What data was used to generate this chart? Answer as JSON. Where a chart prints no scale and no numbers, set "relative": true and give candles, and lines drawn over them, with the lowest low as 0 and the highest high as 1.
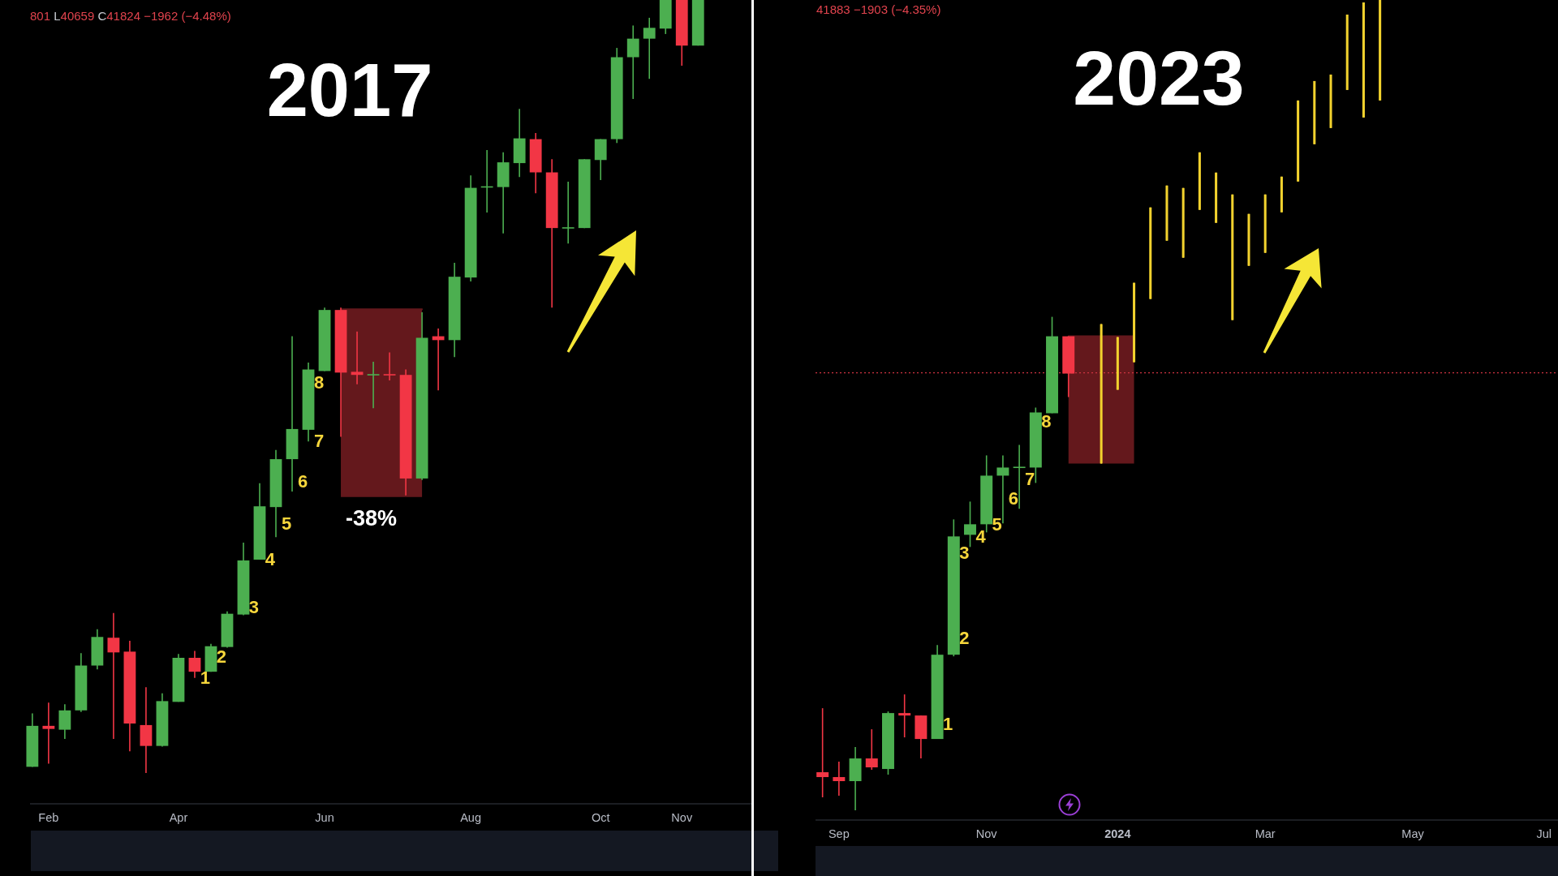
{
  "chart_data": [
    {
      "type": "candlestick",
      "title": "2017",
      "relative": true,
      "xlim": [
        "2017-01-29",
        "2017-12-06"
      ],
      "xticks": [
        {
          "value": "2017-02-06",
          "label": "Feb"
        },
        {
          "value": "2017-04-03",
          "label": "Apr"
        },
        {
          "value": "2017-06-05",
          "label": "Jun"
        },
        {
          "value": "2017-08-07",
          "label": "Aug"
        },
        {
          "value": "2017-10-02",
          "label": "Oct"
        },
        {
          "value": "2017-11-06",
          "label": "Nov"
        }
      ],
      "series": [
        {
          "name": "-38%",
          "type": "line",
          "x": [
            "2017-06-12",
            "2017-07-17"
          ],
          "values": [
            0.6,
            0.6
          ],
          "lower": [
            0.357,
            0.357
          ],
          "upper": [
            0.6,
            0.6
          ],
          "color": "#64181c"
        },
        {
          "x": [
            "2017-01-30",
            "2017-02-06",
            "2017-02-13",
            "2017-02-20",
            "2017-02-27",
            "2017-03-06",
            "2017-03-13",
            "2017-03-20",
            "2017-03-27",
            "2017-04-03",
            "2017-04-10",
            "2017-04-17",
            "2017-04-24",
            "2017-05-01",
            "2017-05-08",
            "2017-05-15",
            "2017-05-22",
            "2017-05-29",
            "2017-06-05",
            "2017-06-12",
            "2017-06-19",
            "2017-06-26",
            "2017-07-03",
            "2017-07-10",
            "2017-07-17",
            "2017-07-24",
            "2017-07-31",
            "2017-08-07",
            "2017-08-14",
            "2017-08-21",
            "2017-08-28",
            "2017-09-04",
            "2017-09-11",
            "2017-09-18",
            "2017-09-25",
            "2017-10-02",
            "2017-10-09",
            "2017-10-16",
            "2017-10-23",
            "2017-10-30",
            "2017-11-06",
            "2017-11-13"
          ],
          "ohlc": [
            [
              0.008,
              0.077,
              0.008,
              0.061
            ],
            [
              0.061,
              0.091,
              0.012,
              0.057
            ],
            [
              0.056,
              0.089,
              0.044,
              0.081
            ],
            [
              0.081,
              0.155,
              0.079,
              0.139
            ],
            [
              0.139,
              0.186,
              0.134,
              0.176
            ],
            [
              0.175,
              0.207,
              0.044,
              0.156
            ],
            [
              0.157,
              0.171,
              0.028,
              0.064
            ],
            [
              0.062,
              0.111,
              0,
              0.035
            ],
            [
              0.035,
              0.103,
              0.034,
              0.093
            ],
            [
              0.092,
              0.154,
              0.092,
              0.149
            ],
            [
              0.149,
              0.158,
              0.123,
              0.131
            ],
            [
              0.131,
              0.167,
              0.131,
              0.164
            ],
            [
              0.163,
              0.209,
              0.162,
              0.206
            ],
            [
              0.205,
              0.298,
              0.204,
              0.275
            ],
            [
              0.276,
              0.375,
              0.276,
              0.345
            ],
            [
              0.344,
              0.418,
              0.305,
              0.406
            ],
            [
              0.406,
              0.565,
              0.364,
              0.445
            ],
            [
              0.444,
              0.531,
              0.429,
              0.522
            ],
            [
              0.52,
              0.602,
              0.52,
              0.599
            ],
            [
              0.599,
              0.602,
              0.435,
              0.518
            ],
            [
              0.519,
              0.571,
              0.503,
              0.515
            ],
            [
              0.515,
              0.532,
              0.472,
              0.516
            ],
            [
              0.516,
              0.544,
              0.508,
              0.515
            ],
            [
              0.515,
              0.522,
              0.359,
              0.381
            ],
            [
              0.381,
              0.596,
              0.379,
              0.563
            ],
            [
              0.565,
              0.575,
              0.495,
              0.56
            ],
            [
              0.56,
              0.66,
              0.538,
              0.642
            ],
            [
              0.641,
              0.773,
              0.636,
              0.757
            ],
            [
              0.758,
              0.806,
              0.725,
              0.759
            ],
            [
              0.758,
              0.803,
              0.698,
              0.79
            ],
            [
              0.789,
              0.859,
              0.771,
              0.821
            ],
            [
              0.82,
              0.828,
              0.75,
              0.777
            ],
            [
              0.777,
              0.794,
              0.602,
              0.705
            ],
            [
              0.705,
              0.765,
              0.685,
              0.706
            ],
            [
              0.705,
              0.794,
              0.705,
              0.794
            ],
            [
              0.793,
              0.82,
              0.767,
              0.82
            ],
            [
              0.82,
              0.938,
              0.815,
              0.926
            ],
            [
              0.926,
              0.967,
              0.872,
              0.95
            ],
            [
              0.95,
              0.977,
              0.898,
              0.964
            ],
            [
              0.963,
              1,
              0.956,
              1
            ],
            [
              1,
              1,
              0.915,
              0.941
            ],
            [
              0.941,
              1,
              0.941,
              1
            ]
          ],
          "colors": [
            "#4caf50",
            "#f23645",
            "#4caf50",
            "#4caf50",
            "#4caf50",
            "#f23645",
            "#f23645",
            "#f23645",
            "#4caf50",
            "#4caf50",
            "#f23645",
            "#4caf50",
            "#4caf50",
            "#4caf50",
            "#4caf50",
            "#4caf50",
            "#4caf50",
            "#4caf50",
            "#4caf50",
            "#f23645",
            "#f23645",
            "#4caf50",
            "#f23645",
            "#f23645",
            "#4caf50",
            "#f23645",
            "#4caf50",
            "#4caf50",
            "#4caf50",
            "#4caf50",
            "#4caf50",
            "#f23645",
            "#f23645",
            "#4caf50",
            "#4caf50",
            "#4caf50",
            "#4caf50",
            "#4caf50",
            "#4caf50",
            "#4caf50",
            "#f23645",
            "#4caf50"
          ]
        }
      ],
      "annotations": [
        "801 L40659 C41824 −1962 (−4.48%)",
        {
          "text": "1",
          "x": "2017-04-10",
          "y": 0.123
        },
        {
          "text": "2",
          "x": "2017-04-17",
          "y": 0.151
        },
        {
          "text": "3",
          "x": "2017-05-01",
          "y": 0.215
        },
        {
          "text": "4",
          "x": "2017-05-08",
          "y": 0.276
        },
        {
          "text": "5",
          "x": "2017-05-15",
          "y": 0.323
        },
        {
          "text": "6",
          "x": "2017-05-22",
          "y": 0.377
        },
        {
          "text": "7",
          "x": "2017-05-29",
          "y": 0.43
        },
        {
          "text": "8",
          "x": "2017-05-29",
          "y": 0.505
        }
      ]
    },
    {
      "type": "candlestick",
      "title": "2023",
      "relative": true,
      "xlim": [
        "2023-08-25",
        "2024-07-07"
      ],
      "xticks": [
        {
          "value": "2023-09-04",
          "label": "Sep"
        },
        {
          "value": "2023-11-06",
          "label": "Nov"
        },
        {
          "value": "2024-01-01",
          "label": "2024"
        },
        {
          "value": "2024-03-04",
          "label": "Mar"
        },
        {
          "value": "2024-05-06",
          "label": "May"
        },
        {
          "value": "2024-07-01",
          "label": "Jul"
        }
      ],
      "series": [
        {
          "type": "line",
          "x": [
            "2023-12-11",
            "2024-01-08"
          ],
          "values": [
            0.585,
            0.585
          ],
          "lower": [
            0.428,
            0.428
          ],
          "upper": [
            0.585,
            0.585
          ],
          "color": "#64181c"
        },
        {
          "x": [
            "2023-08-28",
            "2023-09-04",
            "2023-09-11",
            "2023-09-18",
            "2023-09-25",
            "2023-10-02",
            "2023-10-09",
            "2023-10-16",
            "2023-10-23",
            "2023-10-30",
            "2023-11-06",
            "2023-11-13",
            "2023-11-20",
            "2023-11-27",
            "2023-12-04",
            "2023-12-11"
          ],
          "ohlc": [
            [
              0.047,
              0.126,
              0.016,
              0.041
            ],
            [
              0.041,
              0.06,
              0.018,
              0.036
            ],
            [
              0.036,
              0.078,
              0,
              0.064
            ],
            [
              0.064,
              0.1,
              0.05,
              0.053
            ],
            [
              0.051,
              0.122,
              0.044,
              0.12
            ],
            [
              0.12,
              0.143,
              0.09,
              0.117
            ],
            [
              0.117,
              0.117,
              0.064,
              0.088
            ],
            [
              0.088,
              0.204,
              0.088,
              0.192
            ],
            [
              0.192,
              0.359,
              0.19,
              0.338
            ],
            [
              0.34,
              0.381,
              0.325,
              0.353
            ],
            [
              0.353,
              0.438,
              0.343,
              0.413
            ],
            [
              0.413,
              0.438,
              0.354,
              0.423
            ],
            [
              0.423,
              0.451,
              0.372,
              0.424
            ],
            [
              0.423,
              0.497,
              0.404,
              0.491
            ],
            [
              0.49,
              0.609,
              0.49,
              0.585
            ],
            [
              0.585,
              0.585,
              0.51,
              0.539
            ]
          ],
          "colors": [
            "#f23645",
            "#f23645",
            "#4caf50",
            "#f23645",
            "#4caf50",
            "#f23645",
            "#f23645",
            "#4caf50",
            "#4caf50",
            "#4caf50",
            "#4caf50",
            "#4caf50",
            "#4caf50",
            "#4caf50",
            "#4caf50",
            "#f23645"
          ]
        },
        {
          "x": [
            "2023-12-25",
            "2024-01-01",
            "2024-01-08",
            "2024-01-15",
            "2024-01-22",
            "2024-01-29",
            "2024-02-05",
            "2024-02-12",
            "2024-02-19",
            "2024-02-26",
            "2024-03-04",
            "2024-03-11",
            "2024-03-18",
            "2024-03-25",
            "2024-04-01",
            "2024-04-08",
            "2024-04-15",
            "2024-04-22"
          ],
          "ohlc": [
            [
              0.428,
              0.6,
              0.428,
              0.6
            ],
            [
              0.519,
              0.584,
              0.519,
              0.584
            ],
            [
              0.553,
              0.651,
              0.553,
              0.651
            ],
            [
              0.631,
              0.744,
              0.631,
              0.744
            ],
            [
              0.703,
              0.771,
              0.703,
              0.771
            ],
            [
              0.682,
              0.768,
              0.682,
              0.768
            ],
            [
              0.741,
              0.812,
              0.741,
              0.812
            ],
            [
              0.725,
              0.787,
              0.725,
              0.787
            ],
            [
              0.605,
              0.76,
              0.605,
              0.76
            ],
            [
              0.672,
              0.736,
              0.672,
              0.736
            ],
            [
              0.688,
              0.76,
              0.688,
              0.76
            ],
            [
              0.738,
              0.782,
              0.738,
              0.782
            ],
            [
              0.776,
              0.876,
              0.776,
              0.876
            ],
            [
              0.822,
              0.9,
              0.822,
              0.9
            ],
            [
              0.842,
              0.908,
              0.842,
              0.908
            ],
            [
              0.889,
              0.982,
              0.889,
              0.982
            ],
            [
              0.855,
              0.997,
              0.855,
              0.997
            ],
            [
              0.876,
              1,
              0.876,
              1
            ]
          ],
          "color": "#f2d22e"
        }
      ],
      "ref_lines": [
        {
          "axis": "y",
          "value": 0.54,
          "color": "#cc3340",
          "line_style": "dotted"
        }
      ],
      "annotations": [
        "41883 −1903 (−4.35%)",
        {
          "text": "1",
          "x": "2023-10-16",
          "y": 0.107
        },
        {
          "text": "2",
          "x": "2023-10-23",
          "y": 0.213
        },
        {
          "text": "3",
          "x": "2023-10-23",
          "y": 0.318
        },
        {
          "text": "4",
          "x": "2023-10-30",
          "y": 0.338
        },
        {
          "text": "5",
          "x": "2023-11-06",
          "y": 0.353
        },
        {
          "text": "6",
          "x": "2023-11-13",
          "y": 0.385
        },
        {
          "text": "7",
          "x": "2023-11-20",
          "y": 0.409
        },
        {
          "text": "8",
          "x": "2023-11-27",
          "y": 0.48
        }
      ]
    }
  ]
}
